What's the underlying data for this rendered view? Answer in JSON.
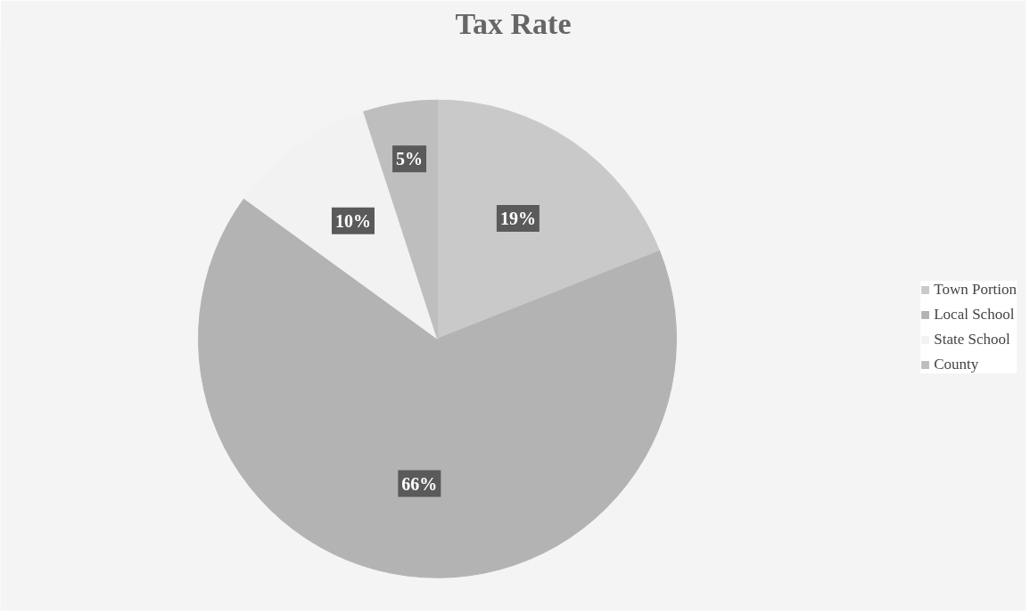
{
  "chart_data": {
    "type": "pie",
    "title": "Tax Rate",
    "categories": [
      "Town Portion",
      "Local School",
      "State School",
      "County"
    ],
    "values": [
      19,
      66,
      10,
      5
    ],
    "colors": [
      "#c9c9c9",
      "#b3b3b3",
      "#f2f2f2",
      "#bebebe"
    ],
    "value_labels": [
      "19%",
      "66%",
      "10%",
      "5%"
    ],
    "legend": "right"
  }
}
